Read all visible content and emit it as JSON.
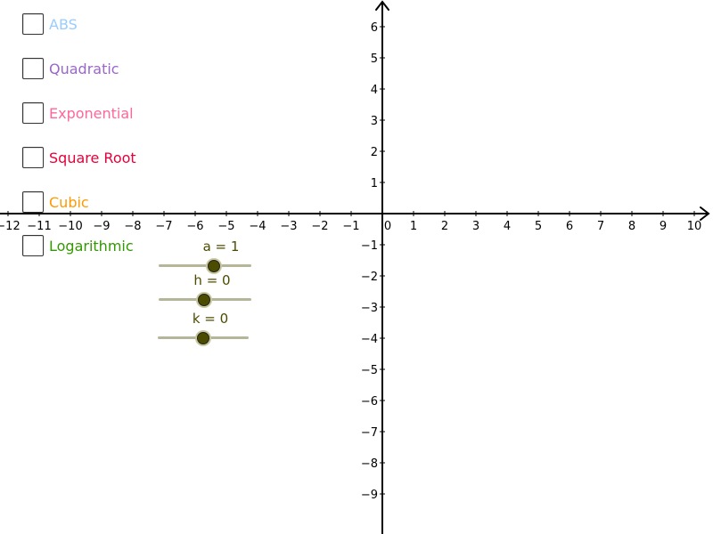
{
  "checkboxes": [
    {
      "label": "ABS",
      "checked": false,
      "color": "#99ccff"
    },
    {
      "label": "Quadratic",
      "checked": false,
      "color": "#9966cc"
    },
    {
      "label": "Exponential",
      "checked": false,
      "color": "#ff6699"
    },
    {
      "label": "Square Root",
      "checked": false,
      "color": "#e6003a"
    },
    {
      "label": "Cubic",
      "checked": false,
      "color": "#ff9900"
    },
    {
      "label": "Logarithmic",
      "checked": false,
      "color": "#339900"
    }
  ],
  "sliders": [
    {
      "label": "a = 1",
      "name": "a",
      "value": 1,
      "fraction": 0.6
    },
    {
      "label": "h = 0",
      "name": "h",
      "value": 0,
      "fraction": 0.5
    },
    {
      "label": "k = 0",
      "name": "k",
      "value": 0,
      "fraction": 0.5
    }
  ],
  "slider_colors": {
    "track": "#b5b597",
    "knob": "#4c4c00",
    "label": "#4c4c00"
  },
  "axes": {
    "x_ticks": [
      -12,
      -11,
      -10,
      -9,
      -8,
      -7,
      -6,
      -5,
      -4,
      -3,
      -2,
      -1,
      0,
      1,
      2,
      3,
      4,
      5,
      6,
      7,
      8,
      9,
      10
    ],
    "y_ticks": [
      6,
      5,
      4,
      3,
      2,
      1,
      -1,
      -2,
      -3,
      -4,
      -5,
      -6,
      -7,
      -8,
      -9
    ],
    "origin_label": "0",
    "minus_sign": "−"
  }
}
